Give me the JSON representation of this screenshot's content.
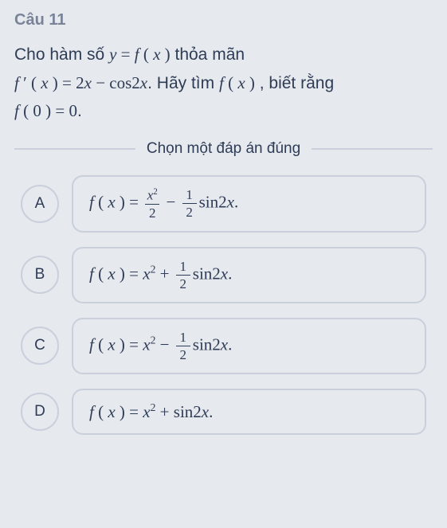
{
  "background_color": "#e6e9ee",
  "text_color": "#2f3c56",
  "muted_color": "#7a8499",
  "border_color": "#c9d0dc",
  "question_number": "Câu 11",
  "stem_line1_pre": "Cho hàm số ",
  "stem_line1_math": "y = f ( x )",
  "stem_line1_post": " thỏa mãn",
  "stem_line2_math1": "f ′ ( x ) = 2x − cos2x",
  "stem_line2_mid": ". Hãy tìm ",
  "stem_line2_math2": "f ( x )",
  "stem_line2_post": " , biết rằng",
  "stem_line3_math": "f ( 0 ) = 0",
  "stem_line3_post": ".",
  "instruction": "Chọn một đáp án đúng",
  "options": {
    "a": {
      "letter": "A"
    },
    "b": {
      "letter": "B"
    },
    "c": {
      "letter": "C"
    },
    "d": {
      "letter": "D"
    }
  }
}
